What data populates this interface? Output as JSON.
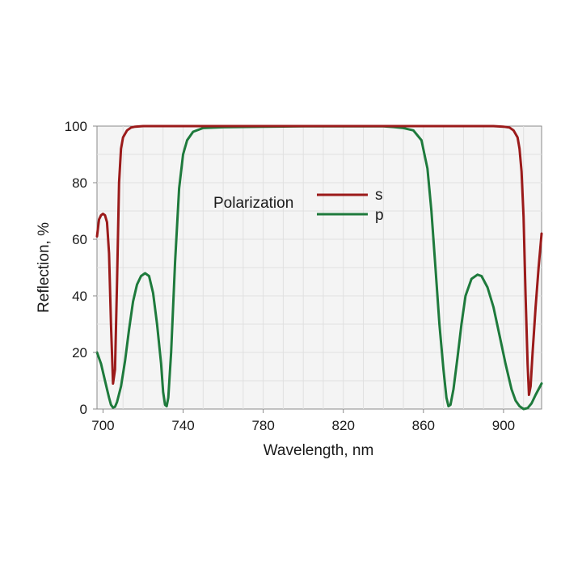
{
  "chart_data": {
    "type": "line",
    "xlabel": "Wavelength, nm",
    "ylabel": "Reflection, %",
    "xlim": [
      697,
      919
    ],
    "ylim": [
      0,
      100
    ],
    "xticks": [
      700,
      740,
      780,
      820,
      860,
      900
    ],
    "yticks": [
      0,
      20,
      40,
      60,
      80,
      100
    ],
    "grid": true,
    "legend": {
      "title": "Polarization",
      "placement": "top-left"
    },
    "series": [
      {
        "name": "s",
        "color": "#9b1a1a",
        "points": [
          [
            697,
            61
          ],
          [
            698,
            67
          ],
          [
            699,
            68.5
          ],
          [
            700,
            69
          ],
          [
            701,
            68.5
          ],
          [
            702,
            66
          ],
          [
            703,
            55
          ],
          [
            704,
            30
          ],
          [
            705,
            9
          ],
          [
            706,
            14
          ],
          [
            707,
            45
          ],
          [
            708,
            80
          ],
          [
            709,
            92
          ],
          [
            710,
            96
          ],
          [
            712,
            98.5
          ],
          [
            714,
            99.5
          ],
          [
            716,
            99.8
          ],
          [
            720,
            100
          ],
          [
            740,
            100
          ],
          [
            760,
            100
          ],
          [
            780,
            100
          ],
          [
            800,
            100
          ],
          [
            820,
            100
          ],
          [
            840,
            100
          ],
          [
            860,
            100
          ],
          [
            880,
            100
          ],
          [
            895,
            100
          ],
          [
            900,
            99.8
          ],
          [
            903,
            99.5
          ],
          [
            905,
            98.5
          ],
          [
            907,
            96
          ],
          [
            908,
            92
          ],
          [
            909,
            84
          ],
          [
            910,
            68
          ],
          [
            911,
            40
          ],
          [
            912,
            16
          ],
          [
            912.7,
            5
          ],
          [
            913.5,
            8
          ],
          [
            914.5,
            20
          ],
          [
            916,
            36
          ],
          [
            917.5,
            50
          ],
          [
            919,
            62
          ]
        ]
      },
      {
        "name": "p",
        "color": "#1e7a3c",
        "points": [
          [
            697,
            20
          ],
          [
            699,
            16
          ],
          [
            701,
            10
          ],
          [
            703,
            4
          ],
          [
            704,
            1.5
          ],
          [
            705,
            0.5
          ],
          [
            706,
            0.8
          ],
          [
            707,
            2.5
          ],
          [
            709,
            8
          ],
          [
            711,
            17
          ],
          [
            713,
            28
          ],
          [
            715,
            38
          ],
          [
            717,
            44
          ],
          [
            719,
            47
          ],
          [
            721,
            48
          ],
          [
            723,
            47
          ],
          [
            725,
            41
          ],
          [
            727,
            30
          ],
          [
            729,
            16
          ],
          [
            730,
            6
          ],
          [
            731,
            1.5
          ],
          [
            731.8,
            1
          ],
          [
            732.6,
            4
          ],
          [
            734,
            20
          ],
          [
            736,
            52
          ],
          [
            738,
            78
          ],
          [
            740,
            90
          ],
          [
            742,
            95
          ],
          [
            745,
            98
          ],
          [
            750,
            99.3
          ],
          [
            760,
            99.6
          ],
          [
            780,
            99.8
          ],
          [
            800,
            99.9
          ],
          [
            820,
            99.9
          ],
          [
            840,
            99.9
          ],
          [
            845,
            99.7
          ],
          [
            850,
            99.3
          ],
          [
            855,
            98.5
          ],
          [
            859,
            95
          ],
          [
            862,
            85
          ],
          [
            864,
            70
          ],
          [
            866,
            50
          ],
          [
            868,
            30
          ],
          [
            870,
            14
          ],
          [
            871.5,
            4
          ],
          [
            872.5,
            1
          ],
          [
            873.5,
            1.5
          ],
          [
            875,
            7
          ],
          [
            877,
            18
          ],
          [
            879,
            30
          ],
          [
            881,
            40
          ],
          [
            884,
            46
          ],
          [
            887,
            47.5
          ],
          [
            889,
            47
          ],
          [
            892,
            43
          ],
          [
            895,
            36
          ],
          [
            898,
            26
          ],
          [
            901,
            16
          ],
          [
            904,
            7
          ],
          [
            906,
            3
          ],
          [
            908,
            1
          ],
          [
            910,
            0
          ],
          [
            912,
            0.3
          ],
          [
            914,
            2
          ],
          [
            916,
            5
          ],
          [
            919,
            9
          ]
        ]
      }
    ]
  }
}
